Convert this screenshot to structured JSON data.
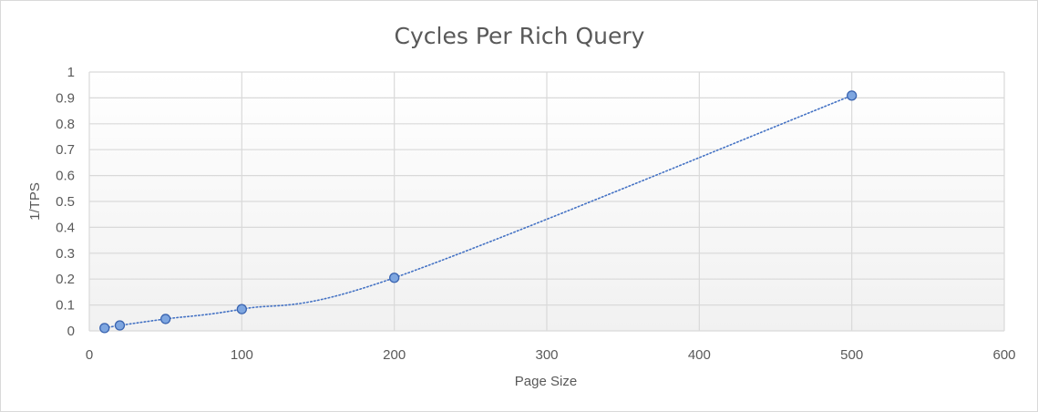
{
  "chart_data": {
    "type": "scatter",
    "title": "Cycles Per Rich Query",
    "xlabel": "Page Size",
    "ylabel": "1/TPS",
    "xlim": [
      0,
      600
    ],
    "ylim": [
      0,
      1
    ],
    "x_ticks": [
      0,
      100,
      200,
      300,
      400,
      500,
      600
    ],
    "y_ticks": [
      0,
      0.1,
      0.2,
      0.3,
      0.4,
      0.5,
      0.6,
      0.7,
      0.8,
      0.9,
      1
    ],
    "x_tick_labels": [
      "0",
      "100",
      "200",
      "300",
      "400",
      "500",
      "600"
    ],
    "y_tick_labels": [
      "0",
      "0.1",
      "0.2",
      "0.3",
      "0.4",
      "0.5",
      "0.6",
      "0.7",
      "0.8",
      "0.9",
      "1"
    ],
    "grid": true,
    "legend": "none",
    "trendline": "dotted-smooth",
    "series": [
      {
        "x": [
          10,
          20,
          50,
          100,
          200,
          500
        ],
        "y": [
          0.011,
          0.021,
          0.046,
          0.084,
          0.205,
          0.909
        ]
      }
    ],
    "colors": {
      "marker_fill": "#7ea6e0",
      "marker_stroke": "#3a64b0",
      "trendline": "#4472c4",
      "grid": "#d9d9d9",
      "text": "#595959"
    }
  }
}
